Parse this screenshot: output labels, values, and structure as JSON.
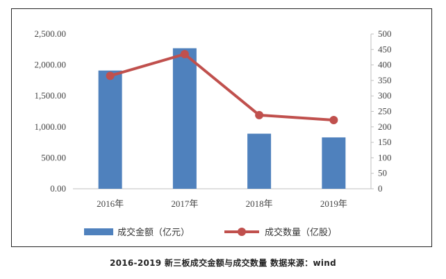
{
  "chart_data": {
    "type": "bar+line",
    "categories": [
      "2016年",
      "2017年",
      "2018年",
      "2019年"
    ],
    "series": [
      {
        "name": "成交金额（亿元）",
        "type": "bar",
        "axis": "left",
        "color": "#4f81bd",
        "values": [
          1910,
          2270,
          890,
          830
        ]
      },
      {
        "name": "成交数量（亿股）",
        "type": "line",
        "axis": "right",
        "color": "#c0504d",
        "values": [
          365,
          435,
          238,
          222
        ]
      }
    ],
    "y_left": {
      "ylim": [
        0,
        2500
      ],
      "ticks": [
        "0.00",
        "500.00",
        "1,000.00",
        "1,500.00",
        "2,000.00",
        "2,500.00"
      ]
    },
    "y_right": {
      "ylim": [
        0,
        500
      ],
      "ticks": [
        "0",
        "50",
        "100",
        "150",
        "200",
        "250",
        "300",
        "350",
        "400",
        "450",
        "500"
      ]
    },
    "grid": false,
    "legend": "bottom"
  },
  "caption": "2016-2019 新三板成交金额与成交数量 数据来源：wind"
}
